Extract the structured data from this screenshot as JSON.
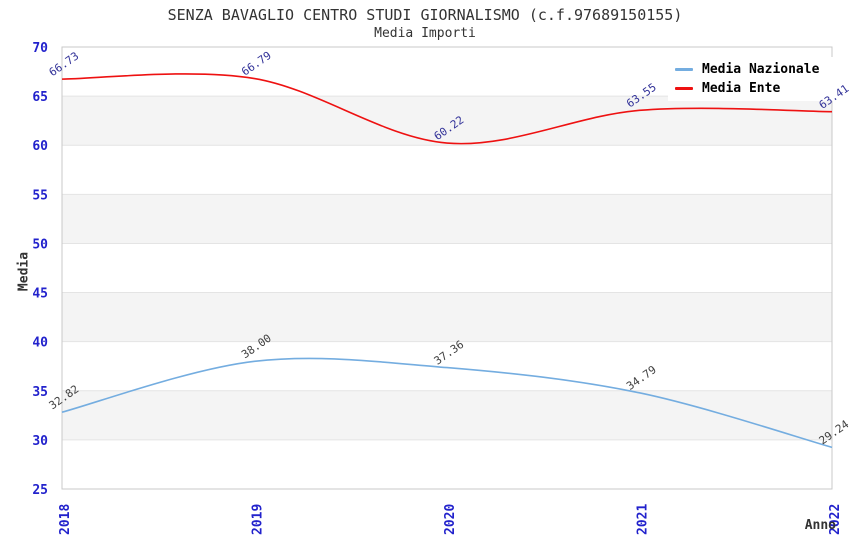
{
  "header": {
    "title": "SENZA BAVAGLIO CENTRO STUDI GIORNALISMO (c.f.97689150155)",
    "subtitle": "Media Importi"
  },
  "axes": {
    "y_label": "Media",
    "x_label": "Anno"
  },
  "colors": {
    "tick_label": "#2222cc",
    "band_light": "#ffffff",
    "band_dark": "#f4f4f4",
    "gridline": "#e4e4e4",
    "plot_border": "#c9c9c9",
    "title_text": "#333333"
  },
  "chart_data": {
    "type": "line",
    "title": "SENZA BAVAGLIO CENTRO STUDI GIORNALISMO (c.f.97689150155)",
    "subtitle": "Media Importi",
    "xlabel": "Anno",
    "ylabel": "Media",
    "categories": [
      "2018",
      "2019",
      "2020",
      "2021",
      "2022"
    ],
    "series": [
      {
        "name": "Media Nazionale",
        "color": "#74ade0",
        "label_color": "#404040",
        "values": [
          32.82,
          38.0,
          37.36,
          34.79,
          29.24
        ]
      },
      {
        "name": "Media Ente",
        "color": "#ee1111",
        "label_color": "#333399",
        "values": [
          66.73,
          66.79,
          60.22,
          63.55,
          63.41
        ]
      }
    ],
    "ylim": [
      25,
      70
    ],
    "ytick_step": 5,
    "grid": true,
    "alternating_bands": true,
    "legend_position": "top-right",
    "data_labels_decimals": 2
  }
}
